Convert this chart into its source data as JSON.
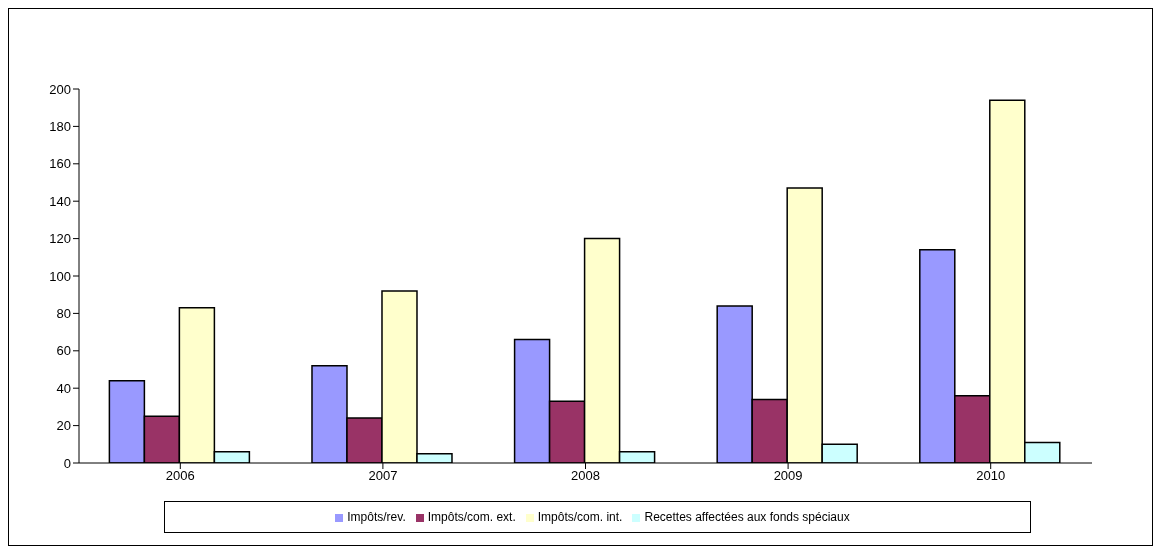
{
  "chart_data": {
    "type": "bar",
    "categories": [
      "2006",
      "2007",
      "2008",
      "2009",
      "2010"
    ],
    "series": [
      {
        "name": "Impôts/rev.",
        "color": "#9999ff",
        "values": [
          44,
          52,
          66,
          84,
          114
        ]
      },
      {
        "name": "Impôts/com. ext.",
        "color": "#993366",
        "values": [
          25,
          24,
          33,
          34,
          36
        ]
      },
      {
        "name": "Impôts/com. int.",
        "color": "#ffffcc",
        "values": [
          83,
          92,
          120,
          147,
          194
        ]
      },
      {
        "name": "Recettes affectées aux fonds spéciaux",
        "color": "#ccffff",
        "values": [
          6,
          5,
          6,
          10,
          11
        ]
      }
    ],
    "ylim": [
      0,
      200
    ],
    "yticks": [
      0,
      20,
      40,
      60,
      80,
      100,
      120,
      140,
      160,
      180,
      200
    ],
    "grid": false,
    "legend": "bottom"
  }
}
